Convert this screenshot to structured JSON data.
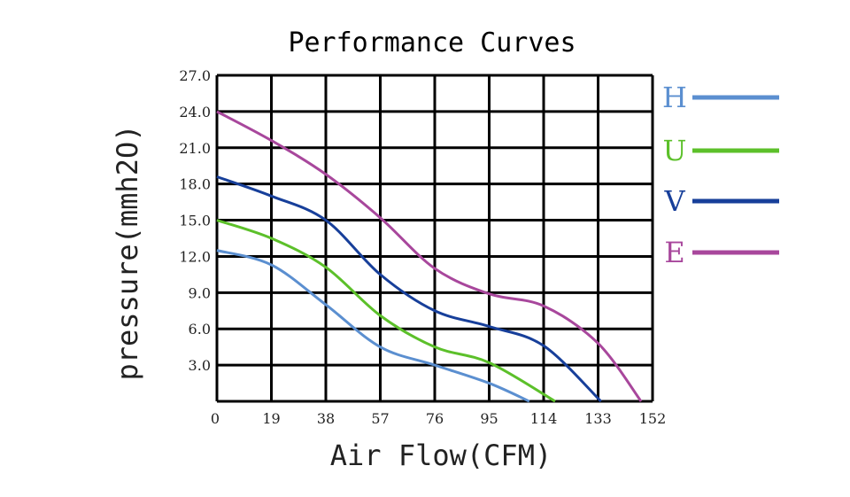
{
  "chart_data": {
    "type": "line",
    "title": "Performance Curves",
    "xlabel": "Air Flow(CFM)",
    "ylabel": "pressure(mmh2O)",
    "xlim": [
      0,
      152
    ],
    "ylim": [
      0,
      27
    ],
    "x_ticks": [
      "0",
      "19",
      "38",
      "57",
      "76",
      "95",
      "114",
      "133",
      "152"
    ],
    "y_ticks": [
      "3.0",
      "6.0",
      "9.0",
      "12.0",
      "15.0",
      "18.0",
      "21.0",
      "24.0",
      "27.0"
    ],
    "grid": true,
    "legend_position": "right",
    "series": [
      {
        "name": "H",
        "color": "#5b8fd0",
        "x": [
          0,
          19,
          38,
          57,
          76,
          95,
          109
        ],
        "y": [
          12.5,
          11.3,
          8.0,
          4.5,
          3.0,
          1.5,
          0
        ]
      },
      {
        "name": "U",
        "color": "#5cc02a",
        "x": [
          0,
          19,
          38,
          57,
          76,
          95,
          118
        ],
        "y": [
          15.0,
          13.5,
          11.1,
          7.1,
          4.5,
          3.2,
          0
        ]
      },
      {
        "name": "V",
        "color": "#173f9a",
        "x": [
          0,
          19,
          38,
          57,
          76,
          95,
          114,
          134
        ],
        "y": [
          18.6,
          17.0,
          15.0,
          10.5,
          7.5,
          6.2,
          4.6,
          0
        ]
      },
      {
        "name": "E",
        "color": "#a8479c",
        "x": [
          0,
          19,
          38,
          57,
          76,
          95,
          114,
          133,
          148
        ],
        "y": [
          24.0,
          21.6,
          18.8,
          15.2,
          11.0,
          8.9,
          7.9,
          4.8,
          0
        ]
      }
    ]
  }
}
